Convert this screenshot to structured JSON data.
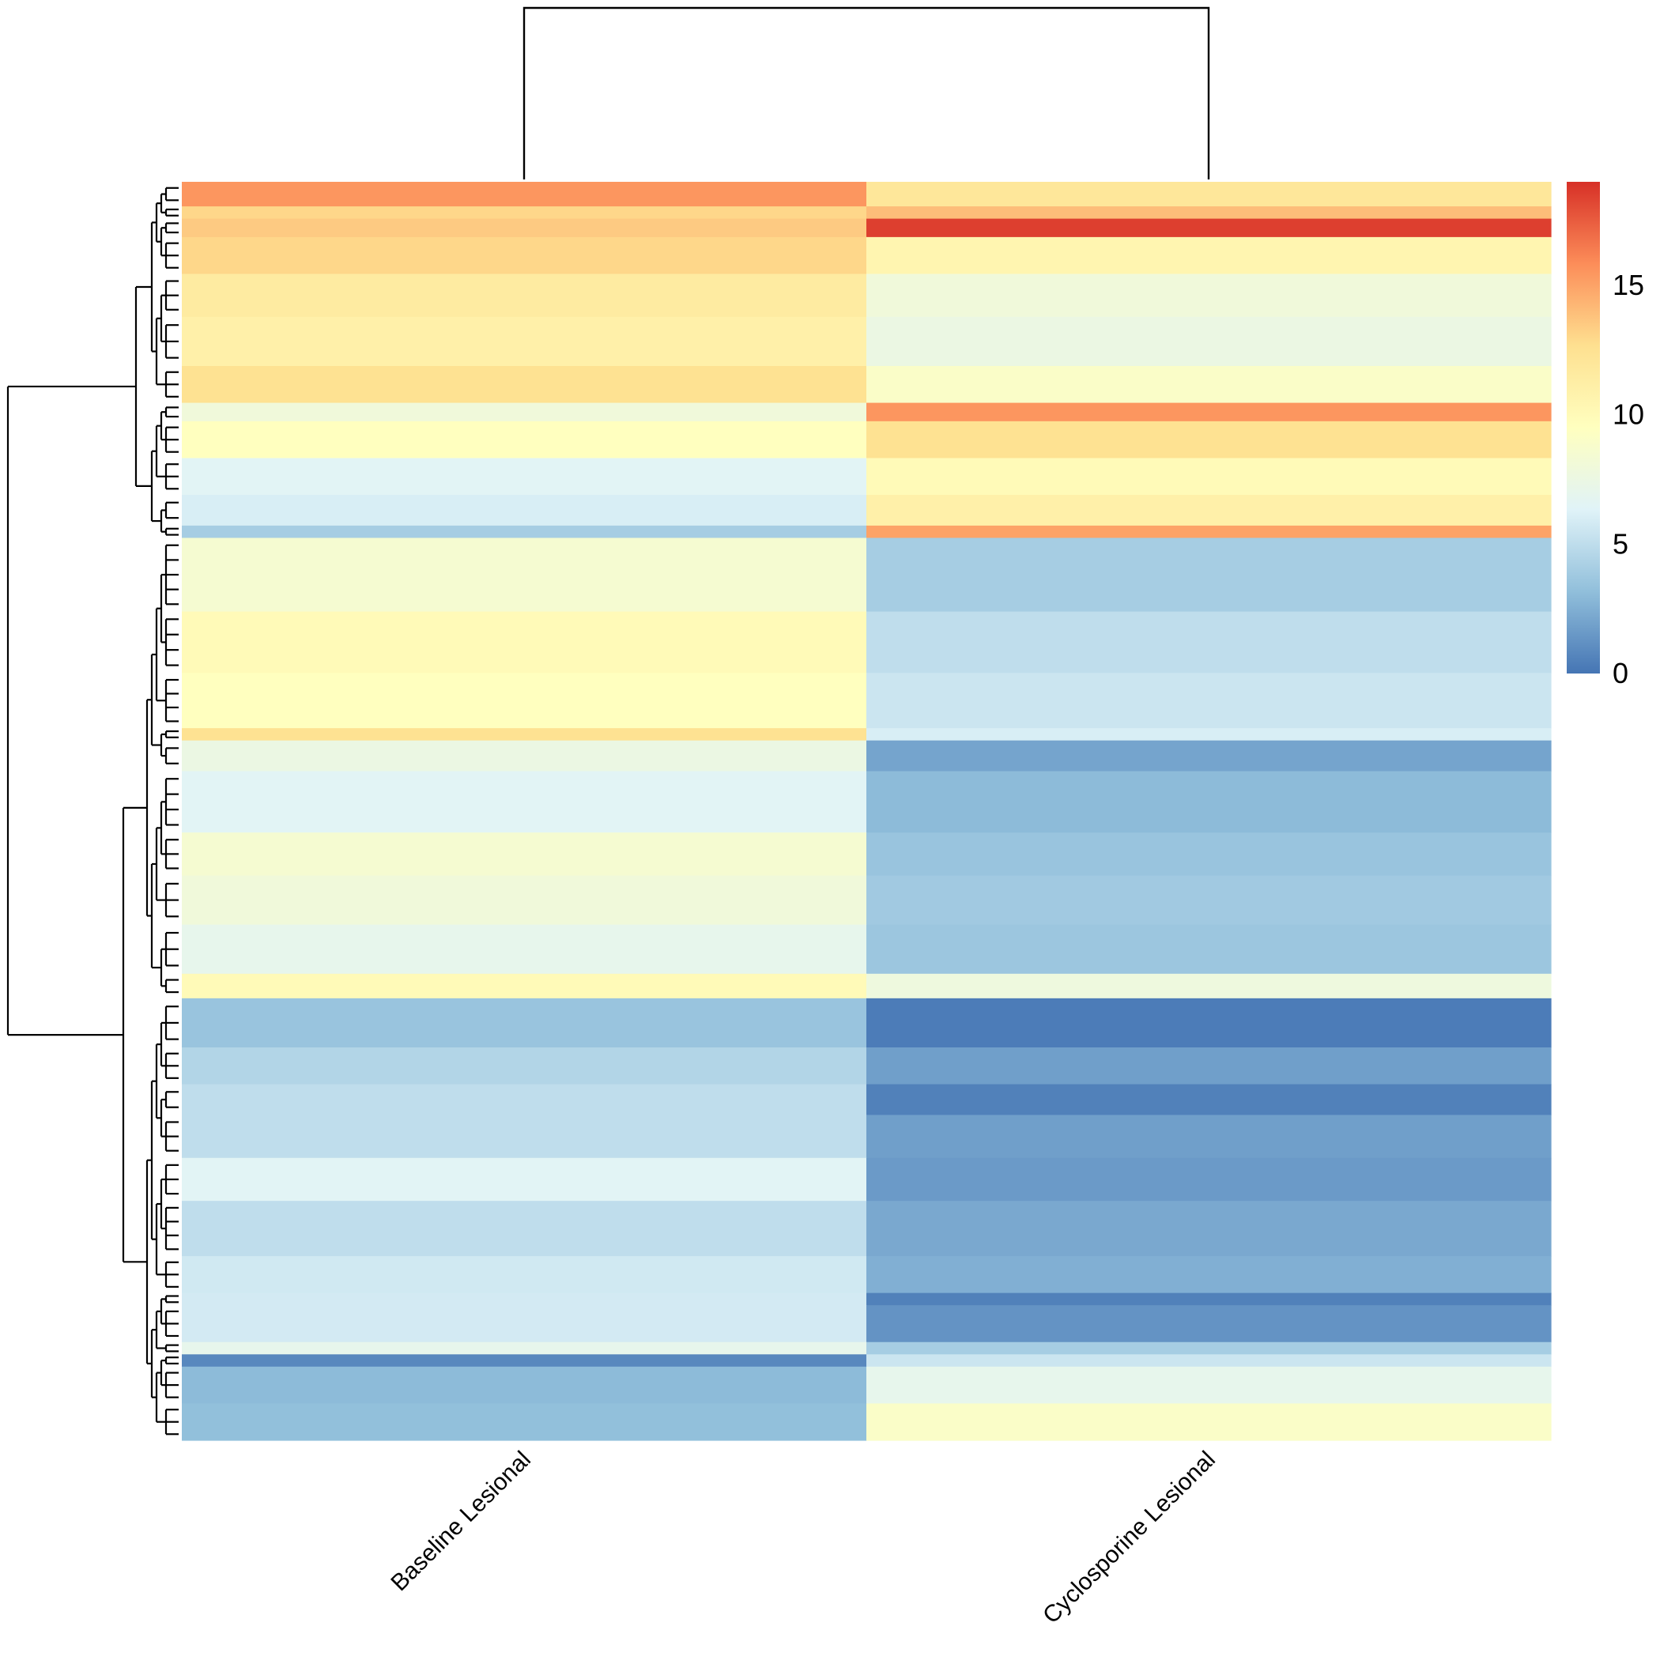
{
  "chart_data": {
    "type": "heatmap",
    "columns": [
      "Baseline Lesional",
      "Cyclosporine Lesional"
    ],
    "column_dendrogram": true,
    "row_dendrogram": true,
    "row_labels_shown": false,
    "colorbar": {
      "ticks": [
        0,
        5,
        10,
        15
      ],
      "range": [
        0,
        19
      ],
      "palette": [
        "#4575b4",
        "#91bfdb",
        "#e0f3f8",
        "#ffffbf",
        "#fee090",
        "#fc8d59",
        "#d73027"
      ]
    },
    "row_blocks": [
      {
        "rows": 4,
        "baseline": 15.5,
        "cyclosporine": 12.0
      },
      {
        "rows": 2,
        "baseline": 13.0,
        "cyclosporine": 14.0
      },
      {
        "rows": 3,
        "baseline": 13.5,
        "cyclosporine": 18.5
      },
      {
        "rows": 6,
        "baseline": 13.0,
        "cyclosporine": 10.5
      },
      {
        "rows": 7,
        "baseline": 11.5,
        "cyclosporine": 8.0
      },
      {
        "rows": 8,
        "baseline": 11.0,
        "cyclosporine": 7.5
      },
      {
        "rows": 6,
        "baseline": 12.5,
        "cyclosporine": 9.0
      },
      {
        "rows": 3,
        "baseline": 8.0,
        "cyclosporine": 15.5
      },
      {
        "rows": 6,
        "baseline": 9.5,
        "cyclosporine": 12.5
      },
      {
        "rows": 6,
        "baseline": 6.5,
        "cyclosporine": 10.0
      },
      {
        "rows": 5,
        "baseline": 6.0,
        "cyclosporine": 11.0
      },
      {
        "rows": 2,
        "baseline": 4.0,
        "cyclosporine": 15.0
      },
      {
        "rows": 12,
        "baseline": 8.5,
        "cyclosporine": 4.0
      },
      {
        "rows": 10,
        "baseline": 10.0,
        "cyclosporine": 5.0
      },
      {
        "rows": 9,
        "baseline": 9.5,
        "cyclosporine": 5.5
      },
      {
        "rows": 2,
        "baseline": 12.5,
        "cyclosporine": 6.0
      },
      {
        "rows": 5,
        "baseline": 7.5,
        "cyclosporine": 2.0
      },
      {
        "rows": 10,
        "baseline": 6.5,
        "cyclosporine": 3.0
      },
      {
        "rows": 7,
        "baseline": 8.5,
        "cyclosporine": 3.5
      },
      {
        "rows": 8,
        "baseline": 8.0,
        "cyclosporine": 3.8
      },
      {
        "rows": 8,
        "baseline": 7.0,
        "cyclosporine": 3.6
      },
      {
        "rows": 4,
        "baseline": 10.0,
        "cyclosporine": 7.8
      },
      {
        "rows": 8,
        "baseline": 3.5,
        "cyclosporine": 0.3
      },
      {
        "rows": 6,
        "baseline": 4.5,
        "cyclosporine": 1.8
      },
      {
        "rows": 5,
        "baseline": 5.0,
        "cyclosporine": 0.5
      },
      {
        "rows": 7,
        "baseline": 5.0,
        "cyclosporine": 1.8
      },
      {
        "rows": 7,
        "baseline": 6.5,
        "cyclosporine": 1.6
      },
      {
        "rows": 9,
        "baseline": 5.0,
        "cyclosporine": 2.2
      },
      {
        "rows": 6,
        "baseline": 5.7,
        "cyclosporine": 2.5
      },
      {
        "rows": 2,
        "baseline": 5.8,
        "cyclosporine": 0.5
      },
      {
        "rows": 6,
        "baseline": 5.8,
        "cyclosporine": 1.3
      },
      {
        "rows": 2,
        "baseline": 7.0,
        "cyclosporine": 4.0
      },
      {
        "rows": 2,
        "baseline": 0.8,
        "cyclosporine": 5.5
      },
      {
        "rows": 6,
        "baseline": 3.0,
        "cyclosporine": 7.0
      },
      {
        "rows": 6,
        "baseline": 3.2,
        "cyclosporine": 9.0
      }
    ]
  }
}
